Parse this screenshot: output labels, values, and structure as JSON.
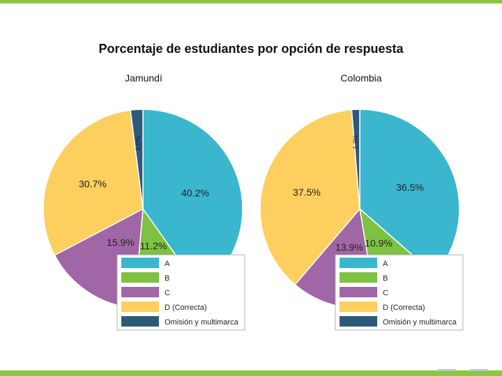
{
  "title": "Porcentaje de estudiantes por opción de respuesta",
  "colors": {
    "A": "#3ab6cf",
    "B": "#7dc242",
    "C": "#a066a6",
    "D": "#fccf5f",
    "O": "#2e5a7a"
  },
  "chart_data": [
    {
      "type": "pie",
      "title": "Jamundí",
      "slices": [
        {
          "key": "A",
          "label": "A",
          "value": 40.2,
          "text": "40.2%"
        },
        {
          "key": "B",
          "label": "B",
          "value": 11.2,
          "text": "11.2%"
        },
        {
          "key": "C",
          "label": "C",
          "value": 15.9,
          "text": "15.9%"
        },
        {
          "key": "D",
          "label": "D (Correcta)",
          "value": 30.7,
          "text": "30.7%"
        },
        {
          "key": "O",
          "label": "Omisión y multimarca",
          "value": 2.0,
          "text": "2.0%"
        }
      ]
    },
    {
      "type": "pie",
      "title": "Colombia",
      "slices": [
        {
          "key": "A",
          "label": "A",
          "value": 36.5,
          "text": "36.5%"
        },
        {
          "key": "B",
          "label": "B",
          "value": 10.9,
          "text": "10.9%"
        },
        {
          "key": "C",
          "label": "C",
          "value": 13.9,
          "text": "13.9%"
        },
        {
          "key": "D",
          "label": "D (Correcta)",
          "value": 37.5,
          "text": "37.5%"
        },
        {
          "key": "O",
          "label": "Omisión y multimarca",
          "value": 1.3,
          "text": "1.3%"
        }
      ]
    }
  ]
}
